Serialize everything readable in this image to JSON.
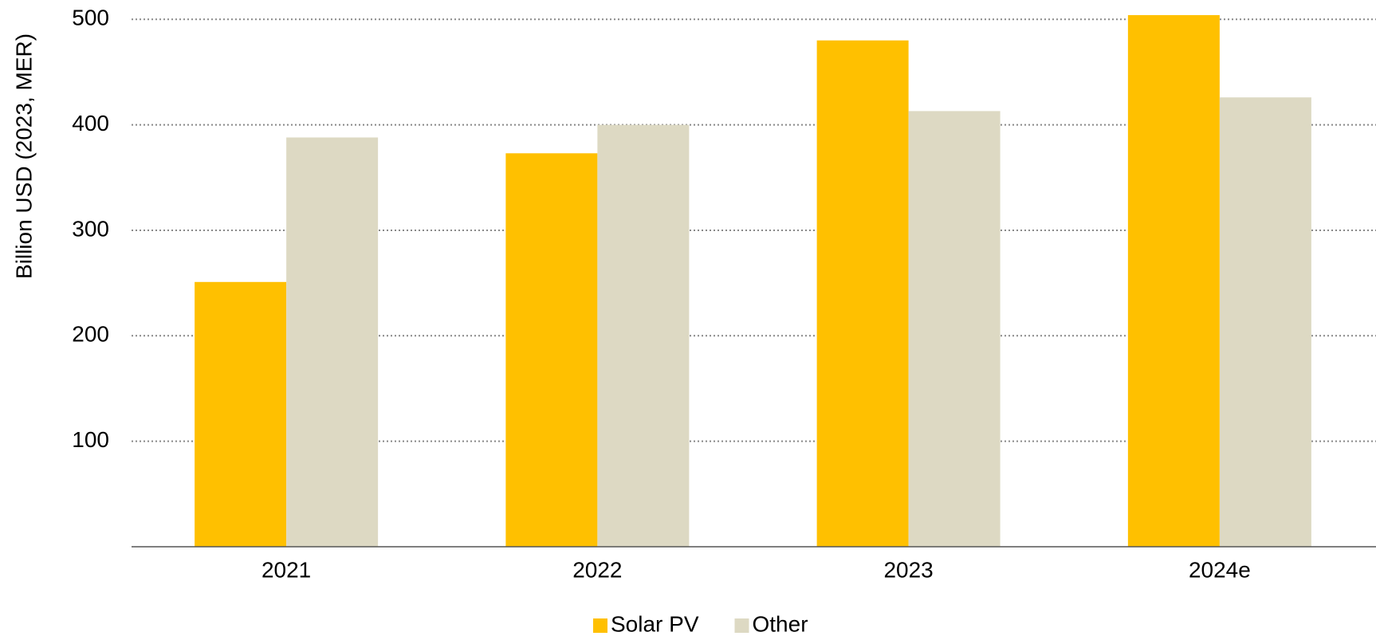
{
  "chart_data": {
    "type": "bar",
    "y_label": "Billion USD (2023, MER)",
    "categories": [
      "2021",
      "2022",
      "2023",
      "2024e"
    ],
    "series": [
      {
        "name": "Solar PV",
        "color": "#ffc000",
        "values": [
          251,
          373,
          480,
          504
        ]
      },
      {
        "name": "Other",
        "color": "#ddd9c3",
        "values": [
          388,
          400,
          413,
          426
        ]
      }
    ],
    "ylim": [
      0,
      510
    ],
    "yticks": [
      100,
      200,
      300,
      400,
      500
    ],
    "grid": true,
    "legend": "bottom"
  }
}
